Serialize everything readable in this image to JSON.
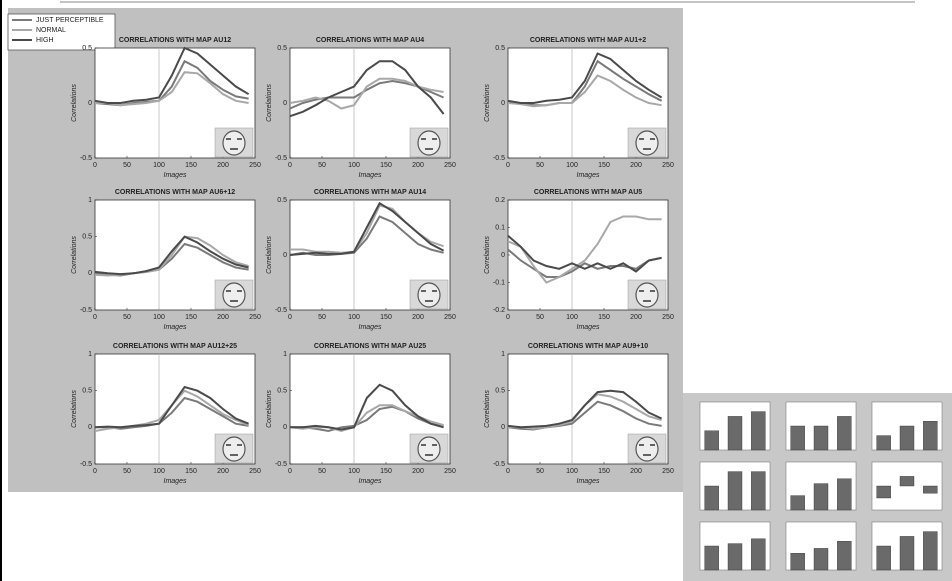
{
  "legend": [
    {
      "name": "JUST PERCEPTIBLE",
      "color": "#7a7a7a"
    },
    {
      "name": "NORMAL",
      "color": "#a8a8a8"
    },
    {
      "name": "HIGH",
      "color": "#4a4a4a"
    }
  ],
  "chart_data": [
    {
      "type": "line",
      "title": "CORRELATIONS WITH MAP AU12",
      "xlabel": "Images",
      "ylabel": "Correlations",
      "x": [
        0,
        20,
        40,
        60,
        80,
        100,
        120,
        140,
        160,
        180,
        200,
        220,
        240
      ],
      "xlim": [
        0,
        250
      ],
      "xticks": [
        0,
        50,
        100,
        150,
        200,
        250
      ],
      "ylim": [
        -0.5,
        0.5
      ],
      "yticks": [
        -0.5,
        0,
        0.5
      ],
      "vline": 100,
      "series": [
        {
          "values": [
            0,
            -0.01,
            -0.02,
            0,
            0.01,
            0.02,
            0.15,
            0.38,
            0.32,
            0.2,
            0.12,
            0.06,
            0.04
          ]
        },
        {
          "values": [
            0,
            0,
            -0.02,
            -0.01,
            0,
            0.02,
            0.1,
            0.28,
            0.27,
            0.18,
            0.08,
            0.02,
            0
          ]
        },
        {
          "values": [
            0.02,
            0,
            0,
            0.02,
            0.03,
            0.05,
            0.25,
            0.5,
            0.45,
            0.35,
            0.25,
            0.15,
            0.08
          ]
        }
      ]
    },
    {
      "type": "line",
      "title": "CORRELATIONS WITH MAP AU4",
      "xlabel": "Images",
      "ylabel": "Correlations",
      "x": [
        0,
        20,
        40,
        60,
        80,
        100,
        120,
        140,
        160,
        180,
        200,
        220,
        240
      ],
      "xlim": [
        0,
        250
      ],
      "xticks": [
        0,
        50,
        100,
        150,
        200,
        250
      ],
      "ylim": [
        -0.5,
        0.5
      ],
      "yticks": [
        -0.5,
        0,
        0.5
      ],
      "vline": 100,
      "series": [
        {
          "values": [
            -0.05,
            0,
            0.03,
            0.05,
            0.05,
            0.05,
            0.12,
            0.18,
            0.2,
            0.18,
            0.15,
            0.1,
            0.05
          ]
        },
        {
          "values": [
            0,
            0.02,
            0.05,
            0.02,
            -0.05,
            -0.02,
            0.15,
            0.22,
            0.22,
            0.2,
            0.15,
            0.12,
            0.1
          ]
        },
        {
          "values": [
            -0.12,
            -0.08,
            -0.02,
            0.05,
            0.1,
            0.15,
            0.3,
            0.38,
            0.38,
            0.3,
            0.15,
            0.05,
            -0.1
          ]
        }
      ]
    },
    {
      "type": "line",
      "title": "CORRELATIONS WITH MAP AU1+2",
      "xlabel": "Images",
      "ylabel": "Correlations",
      "x": [
        0,
        20,
        40,
        60,
        80,
        100,
        120,
        140,
        160,
        180,
        200,
        220,
        240
      ],
      "xlim": [
        0,
        250
      ],
      "xticks": [
        0,
        50,
        100,
        150,
        200,
        250
      ],
      "ylim": [
        -0.5,
        0.5
      ],
      "yticks": [
        -0.5,
        0,
        0.5
      ],
      "vline": 100,
      "series": [
        {
          "values": [
            0,
            0,
            -0.02,
            -0.02,
            0,
            0,
            0.15,
            0.38,
            0.3,
            0.22,
            0.15,
            0.08,
            0.02
          ]
        },
        {
          "values": [
            0,
            -0.01,
            -0.03,
            -0.02,
            0,
            0,
            0.1,
            0.25,
            0.2,
            0.12,
            0.05,
            0,
            -0.02
          ]
        },
        {
          "values": [
            0.02,
            0,
            0,
            0.02,
            0.03,
            0.05,
            0.2,
            0.45,
            0.4,
            0.3,
            0.2,
            0.12,
            0.05
          ]
        }
      ]
    },
    {
      "type": "line",
      "title": "CORRELATIONS WITH MAP AU6+12",
      "xlabel": "Images",
      "ylabel": "Correlations",
      "x": [
        0,
        20,
        40,
        60,
        80,
        100,
        120,
        140,
        160,
        180,
        200,
        220,
        240
      ],
      "xlim": [
        0,
        250
      ],
      "xticks": [
        0,
        50,
        100,
        150,
        200,
        250
      ],
      "ylim": [
        -0.5,
        1
      ],
      "yticks": [
        -0.5,
        0,
        0.5,
        1
      ],
      "vline": 100,
      "series": [
        {
          "values": [
            0,
            -0.02,
            -0.03,
            0,
            0.02,
            0.05,
            0.2,
            0.4,
            0.35,
            0.25,
            0.15,
            0.08,
            0.05
          ]
        },
        {
          "values": [
            -0.02,
            -0.03,
            -0.02,
            0,
            0.02,
            0.05,
            0.25,
            0.5,
            0.48,
            0.38,
            0.25,
            0.15,
            0.1
          ]
        },
        {
          "values": [
            0.02,
            0,
            -0.01,
            0,
            0.03,
            0.08,
            0.3,
            0.5,
            0.42,
            0.3,
            0.2,
            0.12,
            0.08
          ]
        }
      ]
    },
    {
      "type": "line",
      "title": "CORRELATIONS WITH MAP AU14",
      "xlabel": "Images",
      "ylabel": "Correlations",
      "x": [
        0,
        20,
        40,
        60,
        80,
        100,
        120,
        140,
        160,
        180,
        200,
        220,
        240
      ],
      "xlim": [
        0,
        250
      ],
      "xticks": [
        0,
        50,
        100,
        150,
        200,
        250
      ],
      "ylim": [
        -0.5,
        0.5
      ],
      "yticks": [
        -0.5,
        0,
        0.5
      ],
      "vline": 100,
      "series": [
        {
          "values": [
            0,
            0.02,
            0,
            0,
            0.01,
            0.02,
            0.15,
            0.35,
            0.3,
            0.2,
            0.1,
            0.05,
            0.02
          ]
        },
        {
          "values": [
            0.05,
            0.05,
            0.03,
            0.03,
            0.02,
            0.03,
            0.2,
            0.45,
            0.42,
            0.3,
            0.2,
            0.12,
            0.08
          ]
        },
        {
          "values": [
            0,
            0.01,
            0.02,
            0.01,
            0.01,
            0.03,
            0.25,
            0.47,
            0.4,
            0.3,
            0.2,
            0.1,
            0.04
          ]
        }
      ]
    },
    {
      "type": "line",
      "title": "CORRELATIONS WITH MAP AU5",
      "xlabel": "Images",
      "ylabel": "Correlations",
      "x": [
        0,
        20,
        40,
        60,
        80,
        100,
        120,
        140,
        160,
        180,
        200,
        220,
        240
      ],
      "xlim": [
        0,
        250
      ],
      "xticks": [
        0,
        50,
        100,
        150,
        200,
        250
      ],
      "ylim": [
        -0.2,
        0.2
      ],
      "yticks": [
        -0.2,
        -0.1,
        0,
        0.1,
        0.2
      ],
      "vline": 100,
      "series": [
        {
          "values": [
            0.02,
            -0.02,
            -0.05,
            -0.08,
            -0.08,
            -0.06,
            -0.03,
            -0.05,
            -0.04,
            -0.04,
            -0.05,
            -0.02,
            -0.01
          ]
        },
        {
          "values": [
            0.05,
            0.03,
            -0.04,
            -0.1,
            -0.08,
            -0.05,
            -0.02,
            0.04,
            0.12,
            0.14,
            0.14,
            0.13,
            0.13
          ]
        },
        {
          "values": [
            0.07,
            0.03,
            -0.02,
            -0.04,
            -0.05,
            -0.03,
            -0.05,
            -0.03,
            -0.05,
            -0.03,
            -0.06,
            -0.02,
            -0.01
          ]
        }
      ]
    },
    {
      "type": "line",
      "title": "CORRELATIONS WITH MAP AU12+25",
      "xlabel": "Images",
      "ylabel": "Correlations",
      "x": [
        0,
        20,
        40,
        60,
        80,
        100,
        120,
        140,
        160,
        180,
        200,
        220,
        240
      ],
      "xlim": [
        0,
        250
      ],
      "xticks": [
        0,
        50,
        100,
        150,
        200,
        250
      ],
      "ylim": [
        -0.5,
        1
      ],
      "yticks": [
        -0.5,
        0,
        0.5,
        1
      ],
      "vline": 100,
      "series": [
        {
          "values": [
            0,
            0,
            -0.02,
            0,
            0.02,
            0.05,
            0.2,
            0.4,
            0.35,
            0.25,
            0.15,
            0.05,
            0.02
          ]
        },
        {
          "values": [
            -0.05,
            -0.02,
            0,
            0.02,
            0.05,
            0.1,
            0.3,
            0.5,
            0.42,
            0.3,
            0.18,
            0.1,
            0.03
          ]
        },
        {
          "values": [
            0,
            0.01,
            0,
            0.02,
            0.03,
            0.05,
            0.3,
            0.55,
            0.5,
            0.4,
            0.25,
            0.12,
            0.05
          ]
        }
      ]
    },
    {
      "type": "line",
      "title": "CORRELATIONS WITH MAP AU25",
      "xlabel": "Images",
      "ylabel": "Correlations",
      "x": [
        0,
        20,
        40,
        60,
        80,
        100,
        120,
        140,
        160,
        180,
        200,
        220,
        240
      ],
      "xlim": [
        0,
        250
      ],
      "xticks": [
        0,
        50,
        100,
        150,
        200,
        250
      ],
      "ylim": [
        -0.5,
        1
      ],
      "yticks": [
        -0.5,
        0,
        0.5,
        1
      ],
      "vline": 100,
      "series": [
        {
          "values": [
            0,
            0,
            -0.02,
            -0.05,
            0,
            0.02,
            0.1,
            0.25,
            0.28,
            0.22,
            0.12,
            0.05,
            0.02
          ]
        },
        {
          "values": [
            0,
            -0.02,
            0,
            0,
            -0.05,
            0,
            0.2,
            0.3,
            0.3,
            0.22,
            0.15,
            0.08,
            0.03
          ]
        },
        {
          "values": [
            0,
            0,
            0.02,
            0,
            -0.03,
            0,
            0.4,
            0.58,
            0.5,
            0.3,
            0.15,
            0.05,
            0
          ]
        }
      ]
    },
    {
      "type": "line",
      "title": "CORRELATIONS WITH MAP AU9+10",
      "xlabel": "Images",
      "ylabel": "Correlations",
      "x": [
        0,
        20,
        40,
        60,
        80,
        100,
        120,
        140,
        160,
        180,
        200,
        220,
        240
      ],
      "xlim": [
        0,
        250
      ],
      "xticks": [
        0,
        50,
        100,
        150,
        200,
        250
      ],
      "ylim": [
        -0.5,
        1
      ],
      "yticks": [
        -0.5,
        0,
        0.5,
        1
      ],
      "vline": 100,
      "series": [
        {
          "values": [
            0,
            -0.02,
            -0.03,
            0,
            0.02,
            0.05,
            0.2,
            0.35,
            0.3,
            0.22,
            0.12,
            0.05,
            0.02
          ]
        },
        {
          "values": [
            0,
            0,
            -0.02,
            0,
            0.03,
            0.08,
            0.3,
            0.45,
            0.42,
            0.35,
            0.25,
            0.15,
            0.1
          ]
        },
        {
          "values": [
            0.02,
            0,
            0.01,
            0.02,
            0.05,
            0.1,
            0.3,
            0.48,
            0.5,
            0.48,
            0.35,
            0.2,
            0.12
          ]
        }
      ]
    },
    {
      "type": "bar",
      "values": [
        0.4,
        0.7,
        0.8
      ],
      "ylim": [
        0,
        1
      ],
      "color": "#6a6a6a"
    },
    {
      "type": "bar",
      "values": [
        0.5,
        0.5,
        0.7
      ],
      "ylim": [
        0,
        1
      ],
      "color": "#6a6a6a"
    },
    {
      "type": "bar",
      "values": [
        0.3,
        0.5,
        0.6
      ],
      "ylim": [
        0,
        1
      ],
      "color": "#6a6a6a"
    },
    {
      "type": "bar",
      "values": [
        0.5,
        0.8,
        0.8
      ],
      "ylim": [
        0,
        1
      ],
      "color": "#6a6a6a"
    },
    {
      "type": "bar",
      "values": [
        0.3,
        0.55,
        0.65
      ],
      "ylim": [
        0,
        1
      ],
      "color": "#6a6a6a"
    },
    {
      "type": "bar",
      "values": [
        -0.5,
        0.4,
        -0.3
      ],
      "ylim": [
        -1,
        1
      ],
      "color": "#6a6a6a"
    },
    {
      "type": "bar",
      "values": [
        0.5,
        0.55,
        0.65
      ],
      "ylim": [
        0,
        1
      ],
      "color": "#6a6a6a"
    },
    {
      "type": "bar",
      "values": [
        0.35,
        0.45,
        0.6
      ],
      "ylim": [
        0,
        1
      ],
      "color": "#6a6a6a"
    },
    {
      "type": "bar",
      "values": [
        0.5,
        0.7,
        0.8
      ],
      "ylim": [
        0,
        1
      ],
      "color": "#6a6a6a"
    }
  ]
}
